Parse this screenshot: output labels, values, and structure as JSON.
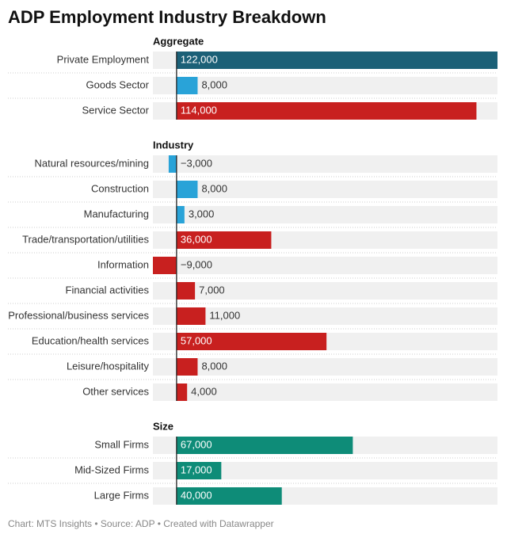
{
  "chart_data": {
    "type": "bar",
    "title": "ADP Employment Industry Breakdown",
    "groups": [
      {
        "name": "Aggregate",
        "categories": [
          "Private Employment",
          "Goods Sector",
          "Service Sector"
        ],
        "values": [
          122000,
          8000,
          114000
        ],
        "value_labels": [
          "122,000",
          "8,000",
          "114,000"
        ],
        "colors": [
          "#1b6077",
          "#29a3d8",
          "#c8201f"
        ]
      },
      {
        "name": "Industry",
        "categories": [
          "Natural resources/mining",
          "Construction",
          "Manufacturing",
          "Trade/transportation/utilities",
          "Information",
          "Financial activities",
          "Professional/business services",
          "Education/health services",
          "Leisure/hospitality",
          "Other services"
        ],
        "values": [
          -3000,
          8000,
          3000,
          36000,
          -9000,
          7000,
          11000,
          57000,
          8000,
          4000
        ],
        "value_labels": [
          "−3,000",
          "8,000",
          "3,000",
          "36,000",
          "−9,000",
          "7,000",
          "11,000",
          "57,000",
          "8,000",
          "4,000"
        ],
        "colors": [
          "#29a3d8",
          "#29a3d8",
          "#29a3d8",
          "#c8201f",
          "#c8201f",
          "#c8201f",
          "#c8201f",
          "#c8201f",
          "#c8201f",
          "#c8201f"
        ]
      },
      {
        "name": "Size",
        "categories": [
          "Small Firms",
          "Mid-Sized Firms",
          "Large Firms"
        ],
        "values": [
          67000,
          17000,
          40000
        ],
        "value_labels": [
          "67,000",
          "17,000",
          "40,000"
        ],
        "colors": [
          "#0e8c78",
          "#0e8c78",
          "#0e8c78"
        ]
      }
    ],
    "footer": "Chart: MTS Insights • Source: ADP • Created with Datawrapper"
  }
}
